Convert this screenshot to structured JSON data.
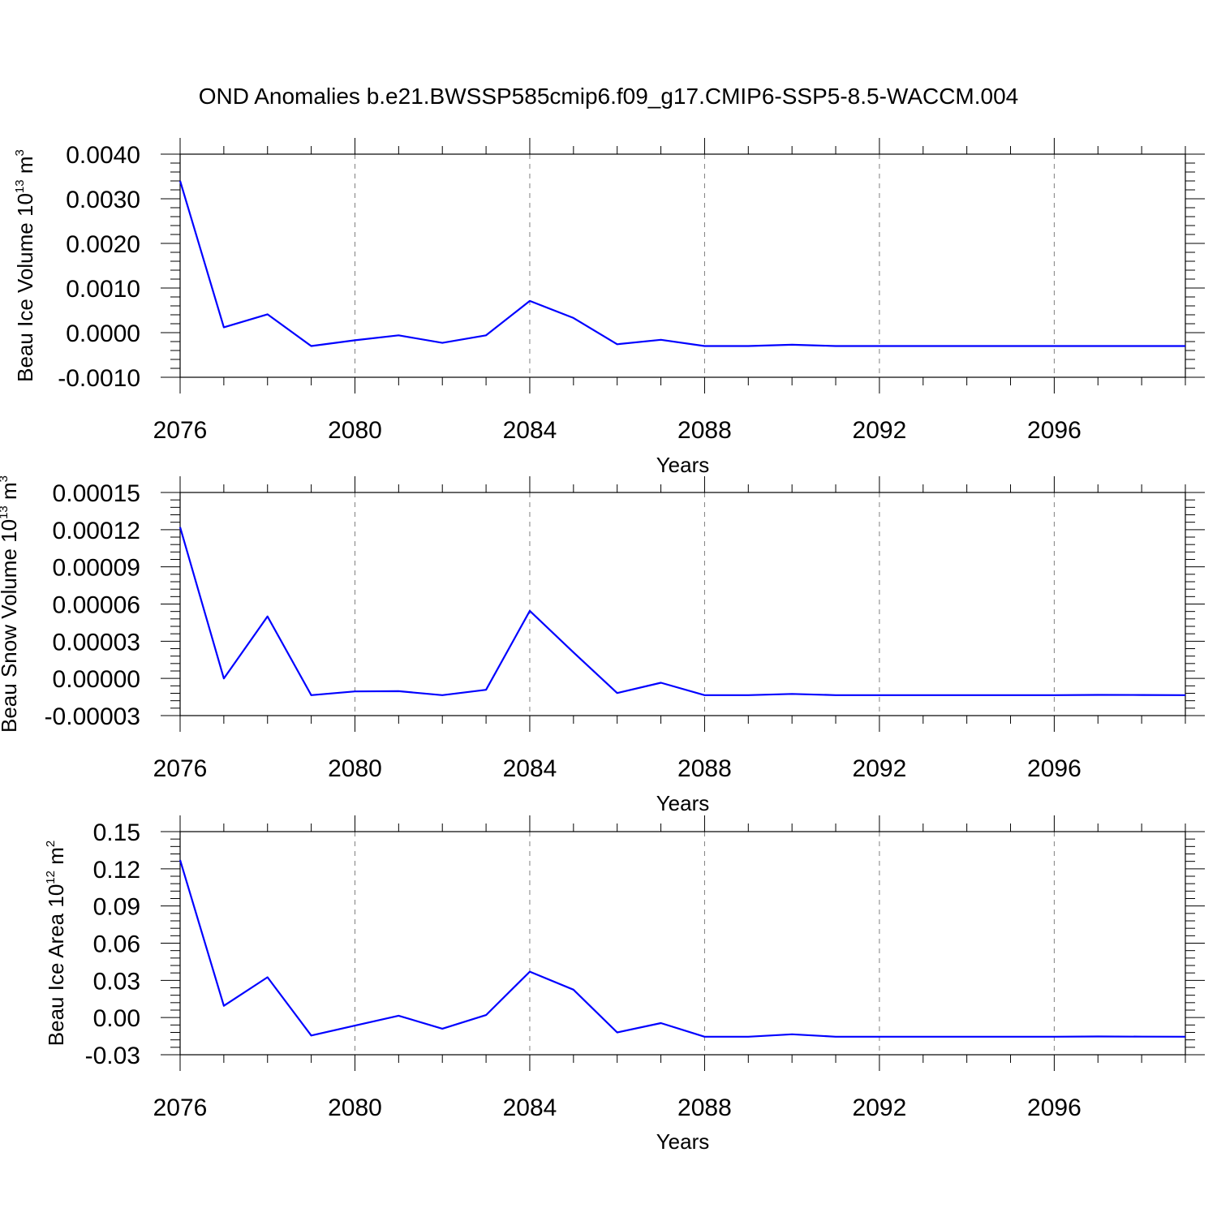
{
  "title": "OND Anomalies b.e21.BWSSP585cmip6.f09_g17.CMIP6-SSP5-8.5-WACCM.004",
  "colors": {
    "line": "#0000ff",
    "axis": "#000000",
    "grid": "#808080"
  },
  "chart_data": [
    {
      "type": "line",
      "ylabel": "Beau Ice Volume",
      "yunit_base": "10",
      "yunit_exp": "13",
      "yunit_m": "m",
      "yunit_mexp": "3",
      "xlabel": "Years",
      "xlim": [
        2076,
        2099
      ],
      "ylim": [
        -0.001,
        0.004
      ],
      "yticks": [
        -0.001,
        0,
        0.001,
        0.002,
        0.003,
        0.004
      ],
      "ytick_labels": [
        "-0.0010",
        "0.0000",
        "0.0010",
        "0.0020",
        "0.0030",
        "0.0040"
      ],
      "xticks": [
        2076,
        2080,
        2084,
        2088,
        2092,
        2096
      ],
      "xtick_labels": [
        "2076",
        "2080",
        "2084",
        "2088",
        "2092",
        "2096"
      ],
      "x": [
        2076,
        2077,
        2078,
        2079,
        2080,
        2081,
        2082,
        2083,
        2084,
        2085,
        2086,
        2087,
        2088,
        2089,
        2090,
        2091,
        2092,
        2093,
        2094,
        2095,
        2096,
        2097,
        2098,
        2099
      ],
      "values": [
        0.0034,
        0.00012,
        0.00041,
        -0.0003,
        -0.00017,
        -6e-05,
        -0.00023,
        -6e-05,
        0.00071,
        0.00033,
        -0.00026,
        -0.00016,
        -0.0003,
        -0.0003,
        -0.00027,
        -0.0003,
        -0.0003,
        -0.0003,
        -0.0003,
        -0.0003,
        -0.0003,
        -0.0003,
        -0.0003,
        -0.0003
      ]
    },
    {
      "type": "line",
      "ylabel": "Beau Snow Volume",
      "yunit_base": "10",
      "yunit_exp": "13",
      "yunit_m": "m",
      "yunit_mexp": "3",
      "xlabel": "Years",
      "xlim": [
        2076,
        2099
      ],
      "ylim": [
        -3e-05,
        0.00015
      ],
      "yticks": [
        -3e-05,
        0,
        3e-05,
        6e-05,
        9e-05,
        0.00012,
        0.00015
      ],
      "ytick_labels": [
        "-0.00003",
        "0.00000",
        "0.00003",
        "0.00006",
        "0.00009",
        "0.00012",
        "0.00015"
      ],
      "xticks": [
        2076,
        2080,
        2084,
        2088,
        2092,
        2096
      ],
      "xtick_labels": [
        "2076",
        "2080",
        "2084",
        "2088",
        "2092",
        "2096"
      ],
      "x": [
        2076,
        2077,
        2078,
        2079,
        2080,
        2081,
        2082,
        2083,
        2084,
        2085,
        2086,
        2087,
        2088,
        2089,
        2090,
        2091,
        2092,
        2093,
        2094,
        2095,
        2096,
        2097,
        2098,
        2099
      ],
      "values": [
        0.000122,
        0.0,
        5e-05,
        -1.35e-05,
        -1.05e-05,
        -1.03e-05,
        -1.35e-05,
        -9.2e-06,
        5.45e-05,
        2.1e-05,
        -1.18e-05,
        -3.5e-06,
        -1.35e-05,
        -1.35e-05,
        -1.25e-05,
        -1.35e-05,
        -1.35e-05,
        -1.35e-05,
        -1.35e-05,
        -1.35e-05,
        -1.35e-05,
        -1.33e-05,
        -1.34e-05,
        -1.35e-05
      ]
    },
    {
      "type": "line",
      "ylabel": "Beau Ice Area",
      "yunit_base": "10",
      "yunit_exp": "12",
      "yunit_m": "m",
      "yunit_mexp": "2",
      "xlabel": "Years",
      "xlim": [
        2076,
        2099
      ],
      "ylim": [
        -0.03,
        0.15
      ],
      "yticks": [
        -0.03,
        0,
        0.03,
        0.06,
        0.09,
        0.12,
        0.15
      ],
      "ytick_labels": [
        "-0.03",
        "0.00",
        "0.03",
        "0.06",
        "0.09",
        "0.12",
        "0.15"
      ],
      "xticks": [
        2076,
        2080,
        2084,
        2088,
        2092,
        2096
      ],
      "xtick_labels": [
        "2076",
        "2080",
        "2084",
        "2088",
        "2092",
        "2096"
      ],
      "x": [
        2076,
        2077,
        2078,
        2079,
        2080,
        2081,
        2082,
        2083,
        2084,
        2085,
        2086,
        2087,
        2088,
        2089,
        2090,
        2091,
        2092,
        2093,
        2094,
        2095,
        2096,
        2097,
        2098,
        2099
      ],
      "values": [
        0.127,
        0.0095,
        0.0325,
        -0.0145,
        -0.0065,
        0.0015,
        -0.009,
        0.002,
        0.037,
        0.0225,
        -0.012,
        -0.0045,
        -0.0155,
        -0.0155,
        -0.0135,
        -0.0155,
        -0.0155,
        -0.0155,
        -0.0155,
        -0.0155,
        -0.0155,
        -0.0153,
        -0.0154,
        -0.0155
      ]
    }
  ]
}
